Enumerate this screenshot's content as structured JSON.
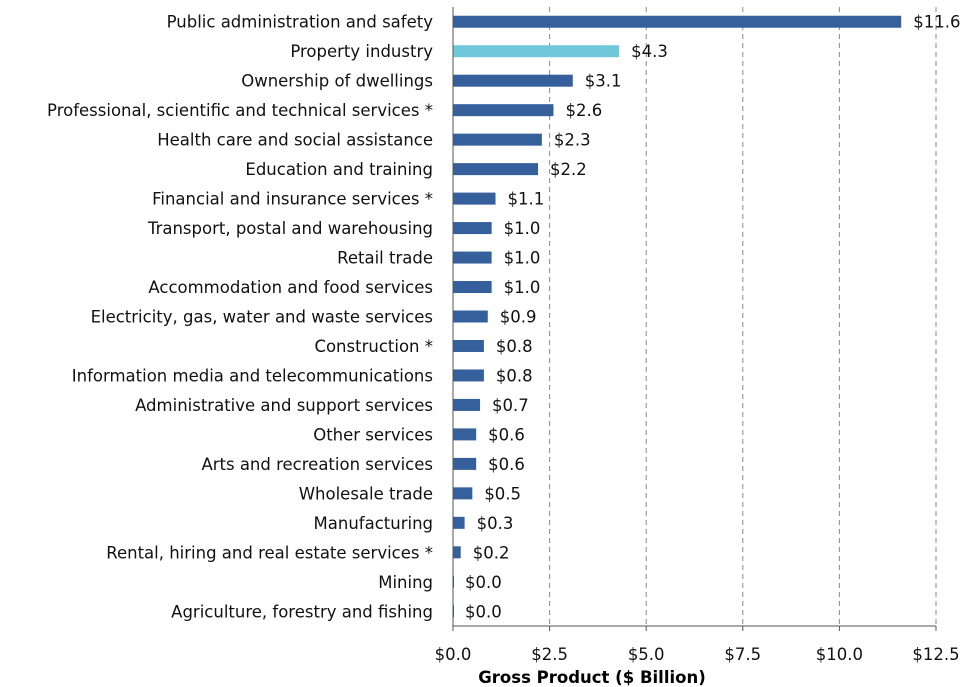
{
  "chart_data": {
    "type": "bar",
    "orientation": "horizontal",
    "title": "",
    "xlabel": "Gross Product ($ Billion)",
    "ylabel": "",
    "xlim": [
      0,
      12.5
    ],
    "x_ticks": [
      0,
      2.5,
      5,
      7.5,
      10,
      12.5
    ],
    "x_tick_labels": [
      "$0.0",
      "$2.5",
      "$5.0",
      "$7.5",
      "$10.0",
      "$12.5"
    ],
    "grid": "vertical dashed",
    "colors": {
      "default": "#35609C",
      "highlight": "#6FC8DA"
    },
    "categories": [
      "Public administration and safety",
      "Property industry",
      "Ownership of dwellings",
      "Professional, scientific and technical services *",
      "Health care and social assistance",
      "Education and training",
      "Financial and insurance services *",
      "Transport, postal and warehousing",
      "Retail trade",
      "Accommodation and food services",
      "Electricity, gas, water and waste services",
      "Construction *",
      "Information media and telecommunications",
      "Administrative and support services",
      "Other services",
      "Arts and recreation services",
      "Wholesale trade",
      "Manufacturing",
      "Rental, hiring and real estate services *",
      "Mining",
      "Agriculture, forestry and fishing"
    ],
    "values": [
      11.6,
      4.3,
      3.1,
      2.6,
      2.3,
      2.2,
      1.1,
      1.0,
      1.0,
      1.0,
      0.9,
      0.8,
      0.8,
      0.7,
      0.6,
      0.6,
      0.5,
      0.3,
      0.2,
      0.0,
      0.0
    ],
    "value_labels": [
      "$11.6",
      "$4.3",
      "$3.1",
      "$2.6",
      "$2.3",
      "$2.2",
      "$1.1",
      "$1.0",
      "$1.0",
      "$1.0",
      "$0.9",
      "$0.8",
      "$0.8",
      "$0.7",
      "$0.6",
      "$0.6",
      "$0.5",
      "$0.3",
      "$0.2",
      "$0.0",
      "$0.0"
    ],
    "highlight_index": 1
  }
}
